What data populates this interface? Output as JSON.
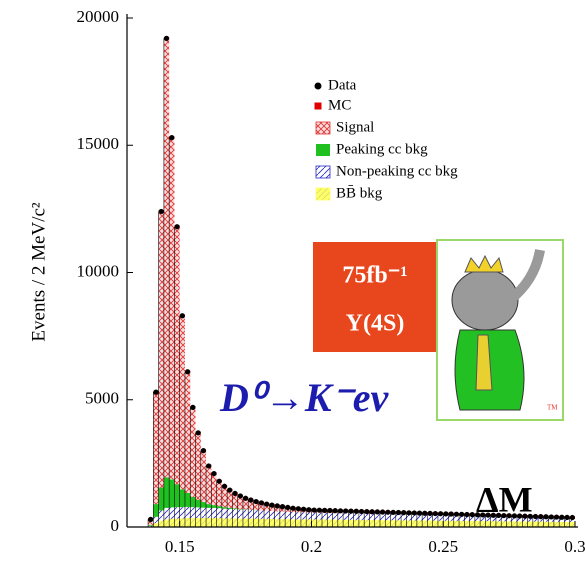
{
  "chart_data": {
    "type": "stacked_histogram",
    "ylabel": "Events / 2 MeV/c²",
    "xlim": [
      0.13,
      0.3
    ],
    "xticks": [
      0.15,
      0.2,
      0.25,
      0.3
    ],
    "ylim": [
      0,
      20000
    ],
    "yticks": [
      0,
      5000,
      10000,
      15000,
      20000
    ],
    "legend": "upper right",
    "bins": [
      0.138,
      0.14,
      0.142,
      0.144,
      0.146,
      0.148,
      0.15,
      0.152,
      0.154,
      0.156,
      0.158,
      0.16,
      0.162,
      0.164,
      0.166,
      0.168,
      0.17,
      0.172,
      0.174,
      0.176,
      0.178,
      0.18,
      0.182,
      0.184,
      0.186,
      0.188,
      0.19,
      0.192,
      0.194,
      0.196,
      0.198,
      0.2,
      0.202,
      0.204,
      0.206,
      0.208,
      0.21,
      0.212,
      0.214,
      0.216,
      0.218,
      0.22,
      0.222,
      0.224,
      0.226,
      0.228,
      0.23,
      0.232,
      0.234,
      0.236,
      0.238,
      0.24,
      0.242,
      0.244,
      0.246,
      0.248,
      0.25,
      0.252,
      0.254,
      0.256,
      0.258,
      0.26,
      0.262,
      0.264,
      0.266,
      0.268,
      0.27,
      0.272,
      0.274,
      0.276,
      0.278,
      0.28,
      0.282,
      0.284,
      0.286,
      0.288,
      0.29,
      0.292,
      0.294,
      0.296,
      0.298,
      0.3
    ],
    "data": {
      "name": "Data",
      "color": "#000000",
      "values": [
        300,
        5300,
        12400,
        19200,
        15300,
        11800,
        8300,
        6100,
        4700,
        3700,
        3000,
        2400,
        2100,
        1800,
        1600,
        1450,
        1320,
        1220,
        1130,
        1060,
        1000,
        950,
        900,
        860,
        830,
        800,
        770,
        740,
        720,
        700,
        680,
        666,
        660,
        654,
        648,
        642,
        636,
        630,
        624,
        618,
        612,
        606,
        600,
        594,
        588,
        582,
        576,
        570,
        564,
        558,
        552,
        546,
        540,
        534,
        528,
        522,
        516,
        510,
        504,
        498,
        492,
        486,
        480,
        474,
        468,
        462,
        456,
        450,
        444,
        438,
        432,
        426,
        420,
        414,
        408,
        402,
        396,
        390,
        384,
        378,
        372
      ]
    },
    "mc": {
      "name": "MC",
      "color": "#e00000"
    },
    "series": [
      {
        "name": "BB̄ bkg",
        "color": "#ffff66",
        "hatch": "diagonal",
        "values": [
          20,
          150,
          250,
          300,
          320,
          330,
          340,
          350,
          350,
          350,
          350,
          350,
          350,
          350,
          340,
          340,
          340,
          330,
          330,
          330,
          330,
          320,
          320,
          320,
          310,
          310,
          310,
          300,
          300,
          300,
          300,
          298,
          296,
          294,
          292,
          290,
          288,
          286,
          284,
          282,
          280,
          278,
          276,
          274,
          272,
          270,
          268,
          266,
          264,
          262,
          260,
          258,
          256,
          254,
          252,
          250,
          248,
          246,
          244,
          242,
          240,
          238,
          236,
          234,
          232,
          230,
          228,
          226,
          224,
          222,
          220,
          218,
          216,
          214,
          212,
          210,
          208,
          206,
          204,
          202,
          200
        ]
      },
      {
        "name": "Non-peaking cc bkg",
        "color": "#2828c8",
        "hatch": "diagonal",
        "values": [
          20,
          250,
          400,
          450,
          450,
          450,
          440,
          440,
          430,
          420,
          410,
          400,
          400,
          390,
          380,
          370,
          360,
          350,
          350,
          340,
          330,
          320,
          320,
          310,
          300,
          300,
          290,
          290,
          280,
          280,
          270,
          268,
          266,
          264,
          262,
          260,
          258,
          256,
          254,
          252,
          250,
          248,
          246,
          244,
          242,
          240,
          238,
          236,
          234,
          232,
          230,
          228,
          226,
          224,
          222,
          220,
          218,
          216,
          214,
          212,
          210,
          208,
          206,
          204,
          202,
          200,
          198,
          196,
          194,
          192,
          190,
          188,
          186,
          184,
          182,
          180,
          178,
          176,
          174,
          172,
          170
        ]
      },
      {
        "name": "Peaking cc bkg",
        "color": "#20c020",
        "hatch": "none",
        "values": [
          30,
          500,
          900,
          1200,
          1100,
          900,
          700,
          550,
          400,
          300,
          220,
          150,
          110,
          80,
          60,
          40,
          30,
          20,
          15,
          10,
          5,
          0,
          0,
          0,
          0,
          0,
          0,
          0,
          0,
          0,
          0,
          0,
          0,
          0,
          0,
          0,
          0,
          0,
          0,
          0,
          0,
          0,
          0,
          0,
          0,
          0,
          0,
          0,
          0,
          0,
          0,
          0,
          0,
          0,
          0,
          0,
          0,
          0,
          0,
          0,
          0,
          0,
          0,
          0,
          0,
          0,
          0,
          0,
          0,
          0,
          0,
          0,
          0,
          0,
          0,
          0,
          0,
          0,
          0,
          0,
          0
        ]
      },
      {
        "name": "Signal",
        "color": "#e03030",
        "hatch": "cross",
        "values": [
          230,
          4400,
          10850,
          17250,
          13430,
          10120,
          6820,
          4760,
          3520,
          2630,
          2020,
          1500,
          1240,
          980,
          820,
          700,
          590,
          520,
          435,
          380,
          335,
          310,
          260,
          230,
          220,
          190,
          170,
          150,
          140,
          120,
          110,
          100,
          98,
          96,
          94,
          92,
          90,
          88,
          86,
          84,
          82,
          80,
          78,
          76,
          74,
          72,
          70,
          68,
          66,
          64,
          62,
          60,
          58,
          56,
          54,
          52,
          50,
          48,
          46,
          44,
          42,
          40,
          38,
          36,
          34,
          32,
          30,
          28,
          26,
          24,
          22,
          20,
          18,
          16,
          14,
          12,
          10,
          8,
          6,
          4,
          2
        ]
      }
    ],
    "annotations": {
      "lumi": "75fb⁻¹",
      "resonance": "Υ(4S)",
      "decay": "D⁰→K⁻eν",
      "variable": "ΔM"
    }
  }
}
